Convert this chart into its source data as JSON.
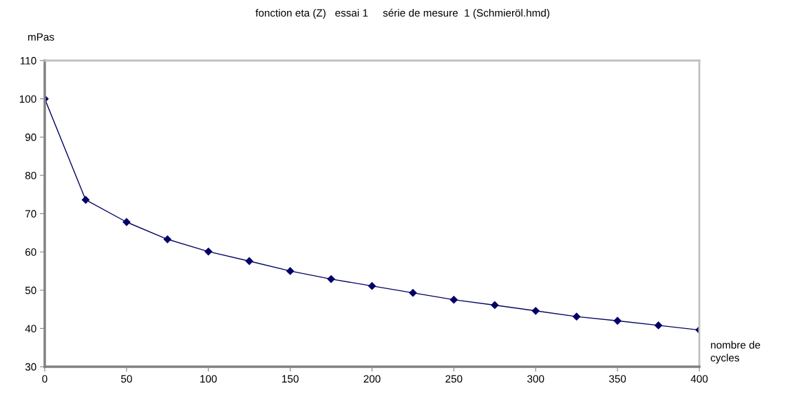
{
  "chart_data": {
    "type": "line",
    "title": "fonction eta (Z)   essai 1     série de mesure  1 (Schmieröl.hmd)",
    "ylabel": "mPas",
    "xlabel": "nombre de\ncycles",
    "x": [
      0,
      25,
      50,
      75,
      100,
      125,
      150,
      175,
      200,
      225,
      250,
      275,
      300,
      325,
      350,
      375,
      400
    ],
    "series": [
      {
        "color": "#000066",
        "values": [
          100,
          73.6,
          67.8,
          63.3,
          60.1,
          57.6,
          55.0,
          52.9,
          51.1,
          49.3,
          47.5,
          46.1,
          44.6,
          43.1,
          42.0,
          40.8,
          39.6
        ]
      }
    ],
    "xlim": [
      0,
      400
    ],
    "xticks": [
      0,
      50,
      100,
      150,
      200,
      250,
      300,
      350,
      400
    ],
    "ylim": [
      30,
      110
    ],
    "yticks": [
      30,
      40,
      50,
      60,
      70,
      80,
      90,
      100,
      110
    ],
    "grid": false,
    "legend": false,
    "marker": "diamond",
    "line_style": "solid"
  }
}
